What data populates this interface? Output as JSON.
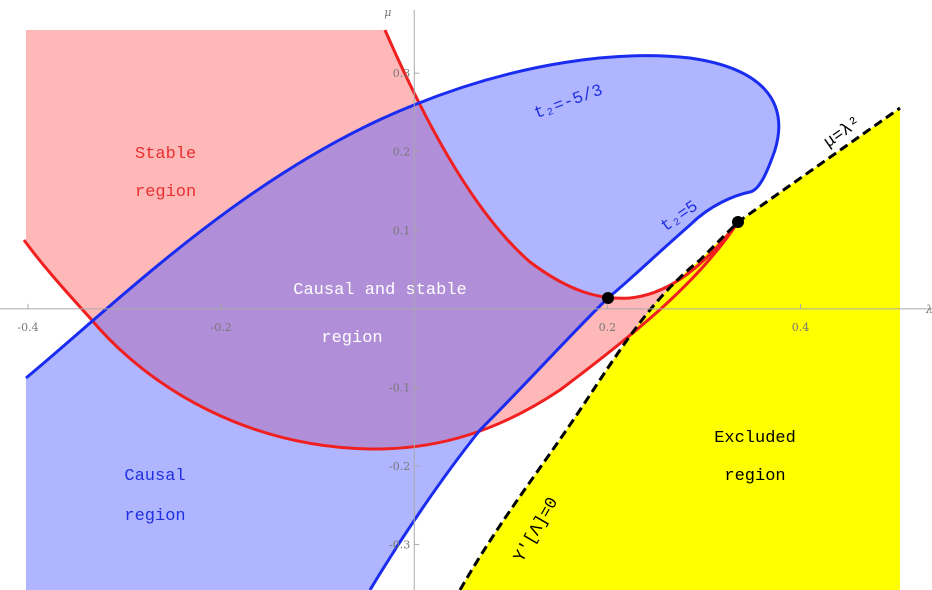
{
  "axes": {
    "x": {
      "label": "λ",
      "lim": [
        -0.4,
        0.503
      ],
      "ticks": [
        -0.4,
        -0.2,
        0.2,
        0.4
      ]
    },
    "y": {
      "label": "μ",
      "lim": [
        -0.358,
        0.355
      ],
      "ticks": [
        -0.3,
        -0.2,
        -0.1,
        0.1,
        0.2,
        0.3
      ]
    }
  },
  "annotations": {
    "stable": [
      "Stable",
      "region"
    ],
    "causal_stable": [
      "Causal and stable",
      "region"
    ],
    "causal": [
      "Causal",
      "region"
    ],
    "excluded": [
      "Excluded",
      "region"
    ],
    "t2_a": "t₂=-5/3",
    "t2_b": "t₂=5",
    "parabola": "μ=λ²",
    "upsilon": "Υ′[Λ]=0"
  }
}
